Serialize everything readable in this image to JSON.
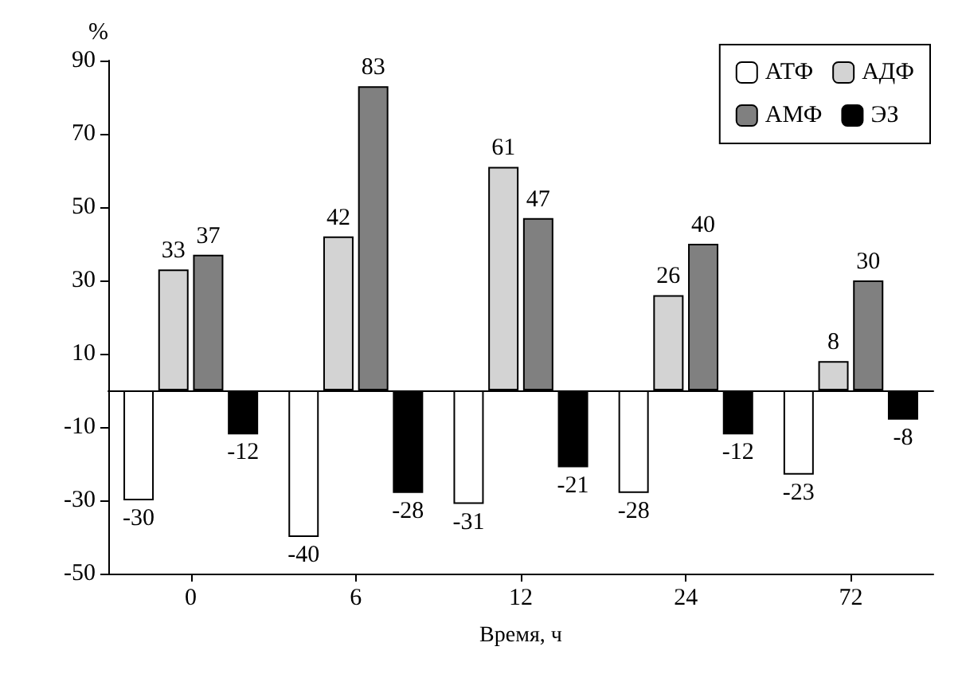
{
  "chart_data": {
    "type": "bar",
    "xlabel": "Время, ч",
    "ylabel": "%",
    "categories": [
      "0",
      "6",
      "12",
      "24",
      "72"
    ],
    "series": [
      {
        "name": "АТФ",
        "color": "#ffffff",
        "values": [
          -30,
          -40,
          -31,
          -28,
          -23
        ]
      },
      {
        "name": "АДФ",
        "color": "#d3d3d3",
        "values": [
          33,
          42,
          61,
          26,
          8
        ]
      },
      {
        "name": "АМФ",
        "color": "#808080",
        "values": [
          37,
          83,
          47,
          40,
          30
        ]
      },
      {
        "name": "ЭЗ",
        "color": "#000000",
        "values": [
          -12,
          -28,
          -21,
          -12,
          -8
        ]
      }
    ],
    "ylim": [
      -50,
      90
    ],
    "yticks": [
      -50,
      -30,
      -10,
      10,
      30,
      50,
      70,
      90
    ],
    "grid": false,
    "legend": "top right",
    "data_labels": true
  }
}
